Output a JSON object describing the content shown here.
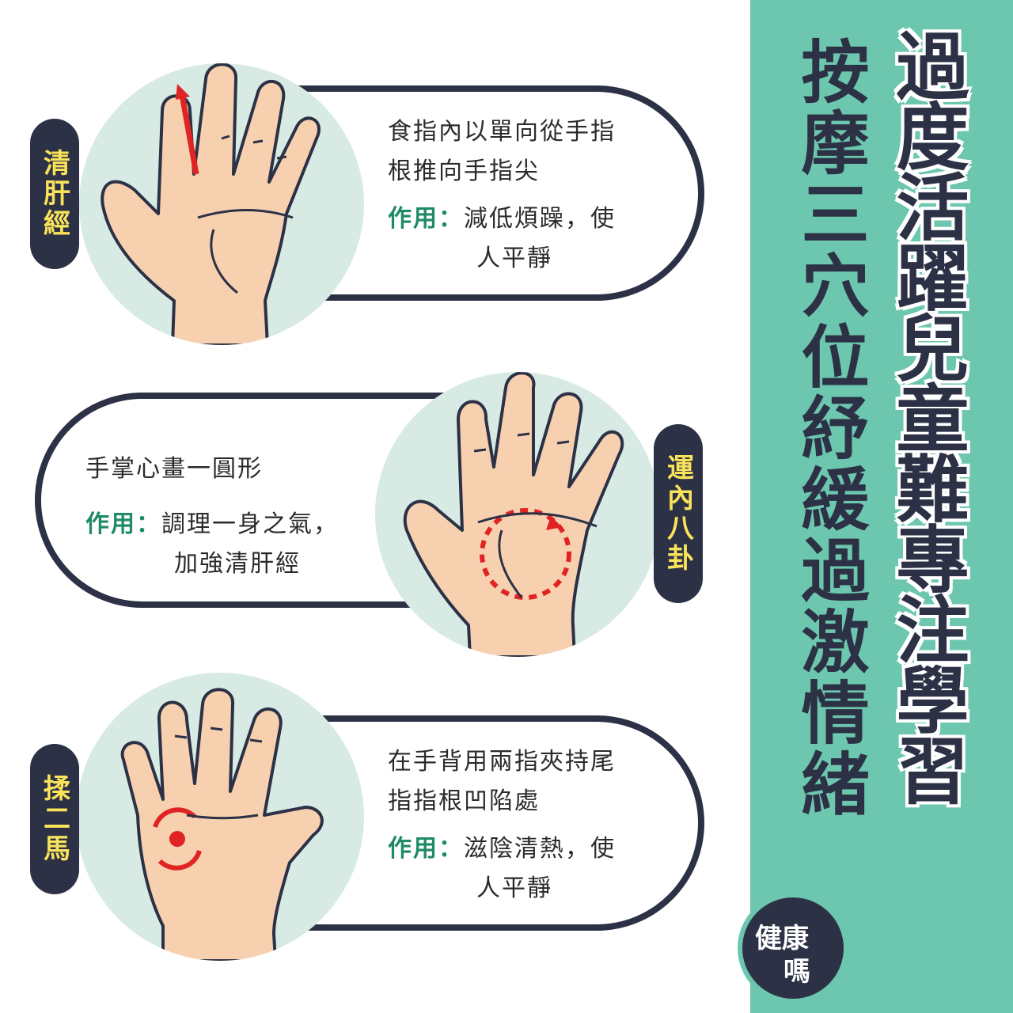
{
  "title": {
    "main": "過度活躍兒童難專注學習",
    "sub": "按摩三穴位紓緩過激情緒"
  },
  "sections": [
    {
      "name": "清肝經",
      "description_lines": [
        "食指內以單向從手指",
        "根推向手指尖"
      ],
      "effect_label": "作用：",
      "effect_lines": [
        "減低煩躁，使",
        "人平靜"
      ]
    },
    {
      "name": "運內八卦",
      "description_lines": [
        "手掌心畫一圓形"
      ],
      "effect_label": "作用：",
      "effect_lines": [
        "調理一身之氣，",
        "加強清肝經"
      ]
    },
    {
      "name": "揉二馬",
      "description_lines": [
        "在手背用兩指夾持尾",
        "指指根凹陷處"
      ],
      "effect_label": "作用：",
      "effect_lines": [
        "滋陰清熱，使",
        "人平靜"
      ]
    }
  ],
  "logo": {
    "line1": "健康",
    "line2": "嗎"
  },
  "colors": {
    "teal": "#6cc7ae",
    "navy": "#2c3146",
    "yellow": "#f8e35a",
    "green_label": "#1f8a66",
    "skin": "#f7d0b0",
    "red": "#e02424"
  }
}
